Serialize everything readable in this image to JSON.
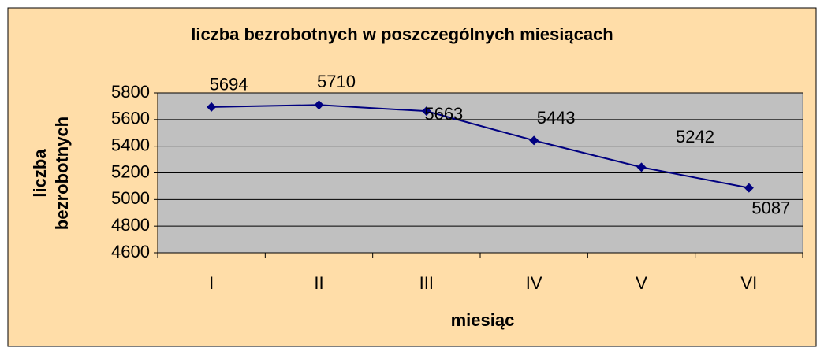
{
  "chart_data": {
    "type": "line",
    "title": "liczba bezrobotnych w poszczególnych miesiącach",
    "x_label": "miesiąc",
    "y_label": [
      "liczba",
      "bezrobotnych"
    ],
    "categories": [
      "I",
      "II",
      "III",
      "IV",
      "V",
      "VI"
    ],
    "series": [
      {
        "name": "liczba bezrobotnych",
        "color": "#000080",
        "values": [
          5694,
          5710,
          5663,
          5443,
          5242,
          5087
        ]
      }
    ],
    "ylim": [
      4600,
      5800
    ],
    "yticks": [
      4600,
      4800,
      5000,
      5200,
      5400,
      5600,
      5800
    ],
    "grid": true,
    "data_labels": true
  }
}
